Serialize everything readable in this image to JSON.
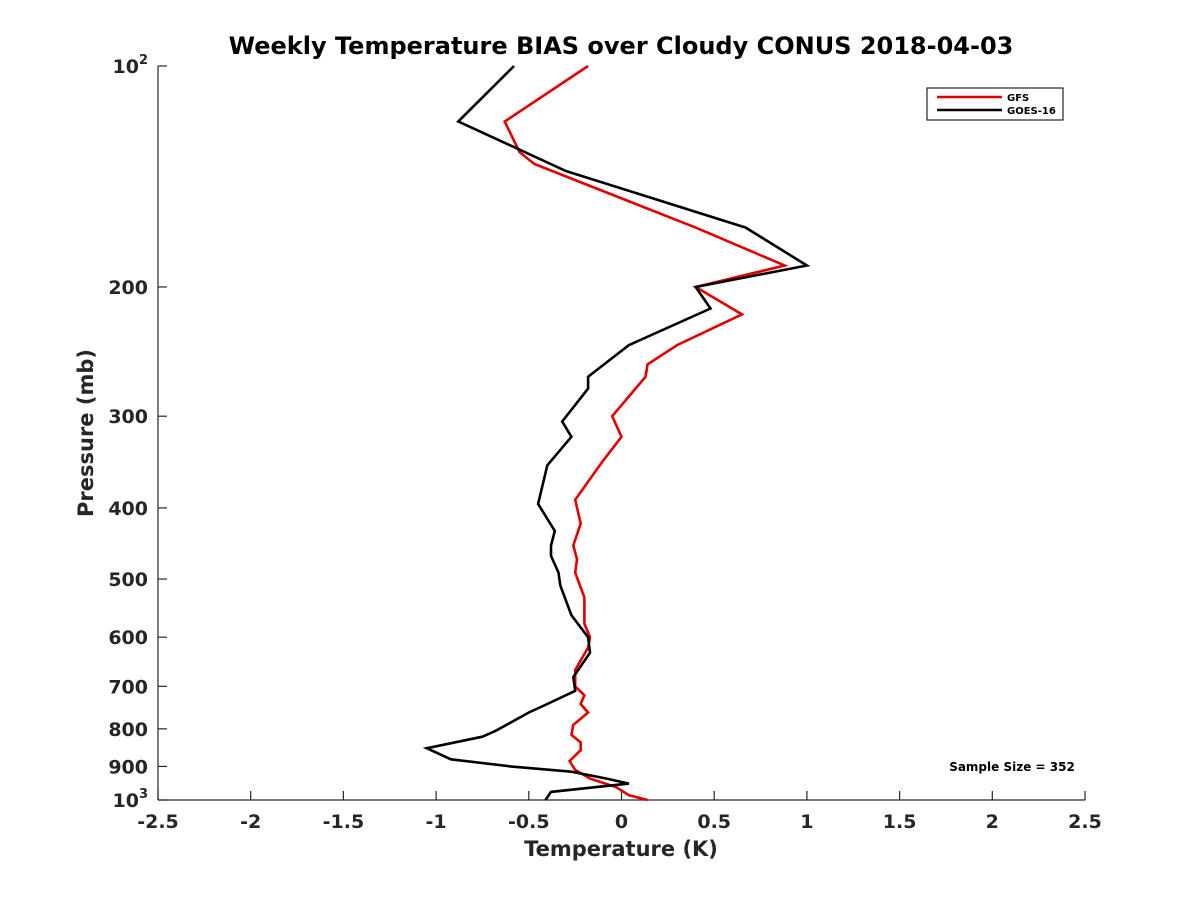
{
  "chart_data": {
    "type": "line",
    "title": "Weekly Temperature BIAS over Cloudy CONUS 2018-04-03",
    "xlabel": "Temperature (K)",
    "ylabel": "Pressure (mb)",
    "xlim": [
      -2.5,
      2.5
    ],
    "ylim": [
      100,
      1000
    ],
    "y_scale": "log",
    "y_reversed": true,
    "grid": false,
    "legend_position": "top-right",
    "x_ticks": [
      -2.5,
      -2,
      -1.5,
      -1,
      -0.5,
      0,
      0.5,
      1,
      1.5,
      2,
      2.5
    ],
    "x_tick_labels": [
      "-2.5",
      "-2",
      "-1.5",
      "-1",
      "-0.5",
      "0",
      "0.5",
      "1",
      "1.5",
      "2",
      "2.5"
    ],
    "y_ticks": [
      {
        "value": 100,
        "label": "10",
        "sup": "2"
      },
      {
        "value": 200,
        "label": "200",
        "sup": ""
      },
      {
        "value": 300,
        "label": "300",
        "sup": ""
      },
      {
        "value": 400,
        "label": "400",
        "sup": ""
      },
      {
        "value": 500,
        "label": "500",
        "sup": ""
      },
      {
        "value": 600,
        "label": "600",
        "sup": ""
      },
      {
        "value": 700,
        "label": "700",
        "sup": ""
      },
      {
        "value": 800,
        "label": "800",
        "sup": ""
      },
      {
        "value": 900,
        "label": "900",
        "sup": ""
      },
      {
        "value": 1000,
        "label": "10",
        "sup": "3"
      }
    ],
    "series": [
      {
        "name": "GFS",
        "color": "#e00000",
        "temperature": [
          0.14,
          0.04,
          -0.03,
          -0.17,
          -0.25,
          -0.28,
          -0.22,
          -0.22,
          -0.27,
          -0.26,
          -0.18,
          -0.22,
          -0.2,
          -0.25,
          -0.25,
          -0.18,
          -0.17,
          -0.2,
          -0.2,
          -0.25,
          -0.24,
          -0.26,
          -0.22,
          -0.25,
          -0.1,
          0.0,
          -0.05,
          0.13,
          0.14,
          0.3,
          0.65,
          0.4,
          0.88,
          0.4,
          -0.47,
          -0.55,
          -0.63,
          -0.18
        ],
        "pressure": [
          1000,
          985,
          960,
          935,
          910,
          885,
          855,
          835,
          815,
          790,
          760,
          740,
          720,
          700,
          665,
          620,
          600,
          575,
          530,
          490,
          470,
          450,
          420,
          390,
          345,
          320,
          300,
          265,
          255,
          240,
          218,
          200,
          187,
          166,
          136,
          131,
          119,
          100
        ]
      },
      {
        "name": "GOES-16",
        "color": "#000000",
        "temperature": [
          -0.41,
          -0.38,
          0.04,
          -0.08,
          -0.27,
          -0.6,
          -0.92,
          -1.05,
          -0.75,
          -0.68,
          -0.6,
          -0.5,
          -0.4,
          -0.25,
          -0.26,
          -0.17,
          -0.18,
          -0.27,
          -0.33,
          -0.34,
          -0.38,
          -0.38,
          -0.36,
          -0.45,
          -0.4,
          -0.27,
          -0.32,
          -0.18,
          -0.18,
          0.04,
          0.48,
          0.4,
          1.0,
          0.67,
          -0.3,
          -0.88,
          -0.58
        ],
        "pressure": [
          1000,
          975,
          950,
          935,
          915,
          900,
          880,
          850,
          820,
          805,
          785,
          760,
          740,
          710,
          680,
          630,
          600,
          560,
          510,
          490,
          465,
          450,
          430,
          395,
          350,
          320,
          305,
          275,
          265,
          240,
          214,
          200,
          187,
          166,
          139,
          119,
          100
        ]
      }
    ],
    "annotation": "Sample Size = 352"
  }
}
